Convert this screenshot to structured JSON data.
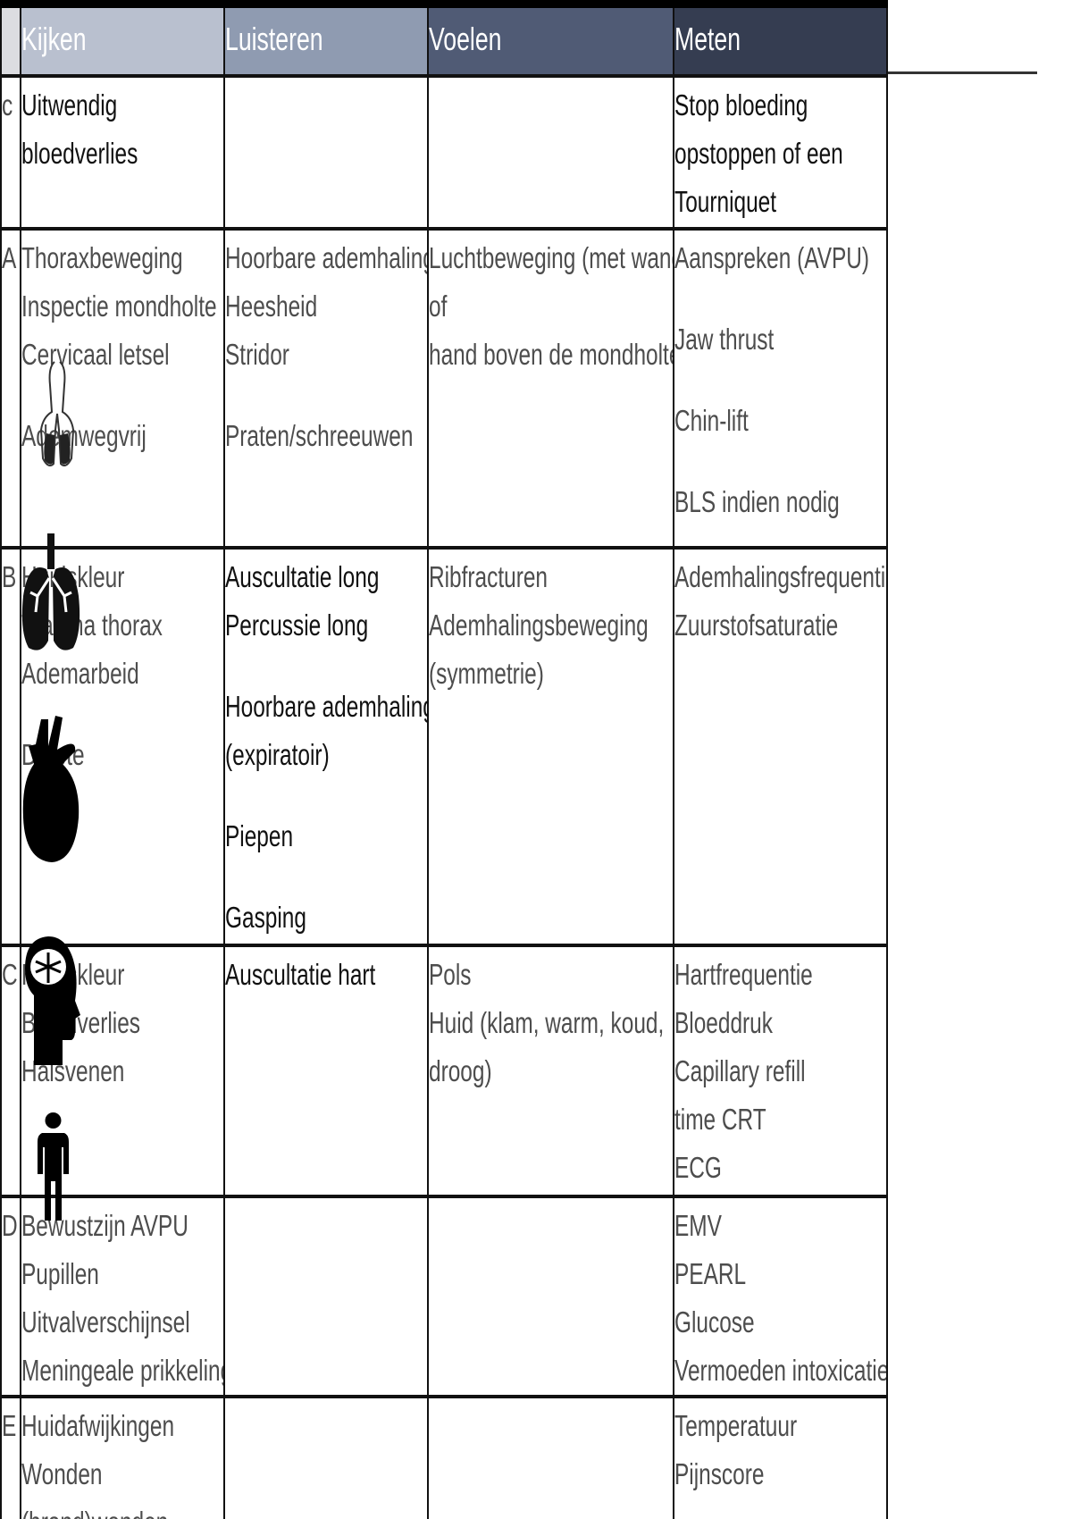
{
  "header": {
    "kijken": "Kijken",
    "luisteren": "Luisteren",
    "voelen": "Voelen",
    "meten": "Meten"
  },
  "colors": {
    "kijken": "#b9c0cf",
    "luisteren": "#8f9bb1",
    "voelen": "#505b75",
    "meten": "#353d51"
  },
  "rows": [
    {
      "label": "c",
      "kijken": [
        "Uitwendig",
        "bloedverlies"
      ],
      "luisteren": [],
      "voelen": [],
      "meten": [
        "Stop bloeding",
        "opstoppen of een",
        "Tourniquet"
      ]
    },
    {
      "label": "A",
      "kijken": [
        "Thoraxbeweging",
        "Inspectie mondholte",
        "Cervicaal letsel",
        "",
        "Ademwegvrij"
      ],
      "luisteren": [
        "Hoorbare ademhaling",
        "Heesheid",
        "Stridor",
        "",
        "Praten/schreeuwen"
      ],
      "voelen": [
        "Luchtbeweging (met wang",
        "of",
        "hand boven de mondholte)"
      ],
      "meten": [
        "Aanspreken (AVPU)",
        "",
        "Jaw thrust",
        "",
        "Chin-lift",
        "",
        "BLS indien nodig"
      ]
    },
    {
      "label": "B",
      "kijken": [
        "Huidskleur",
        "Trauma thorax",
        "Ademarbeid",
        "",
        "Diepte"
      ],
      "luisteren": [
        "Auscultatie long",
        "Percussie long",
        "",
        "Hoorbare ademhaling",
        "(expiratoir)",
        "",
        "Piepen",
        "",
        "Gasping"
      ],
      "voelen": [
        "Ribfracturen",
        "Ademhalingsbeweging",
        "(symmetrie)"
      ],
      "meten": [
        "Ademhalingsfrequentie",
        "Zuurstofsaturatie"
      ]
    },
    {
      "label": "C",
      "kijken": [
        "Huidskleur",
        "Bloedverlies",
        "Halsvenen"
      ],
      "luisteren": [
        "Auscultatie hart"
      ],
      "voelen": [
        "Pols",
        "Huid (klam, warm, koud,",
        "droog)"
      ],
      "meten": [
        "Hartfrequentie",
        "Bloeddruk",
        "Capillary refill",
        "time CRT",
        "ECG"
      ]
    },
    {
      "label": "D",
      "kijken": [
        "Bewustzijn AVPU",
        "Pupillen",
        "Uitvalverschijnsel",
        "Meningeale prikkeling"
      ],
      "luisteren": [],
      "voelen": [],
      "meten": [
        "EMV",
        "PEARL",
        "Glucose",
        "Vermoeden intoxicatie"
      ]
    },
    {
      "label": "E",
      "kijken": [
        "Huidafwijkingen",
        "Wonden",
        "(brand)wonden"
      ],
      "luisteren": [],
      "voelen": [],
      "meten": [
        "Temperatuur",
        "Pijnscore"
      ]
    }
  ],
  "icons": [
    "lungs-airway-icon",
    "lungs-virus-icon",
    "heart-icon",
    "head-brain-icon",
    "person-icon"
  ]
}
